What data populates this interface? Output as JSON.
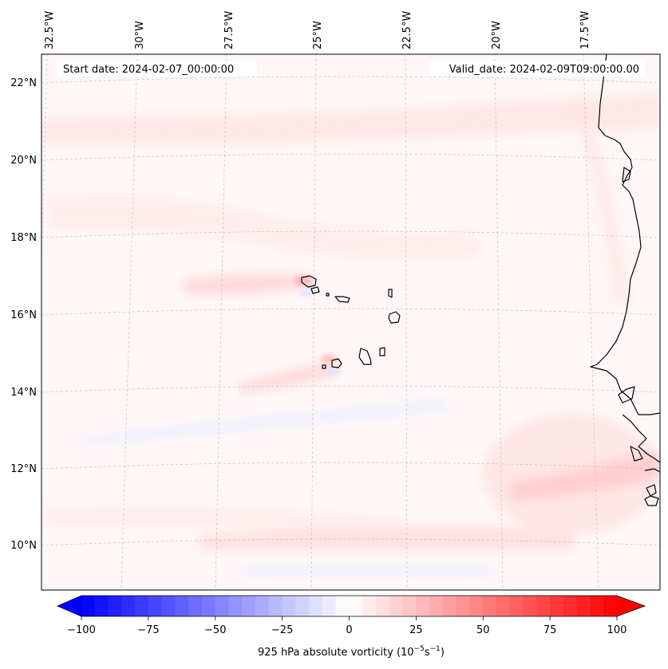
{
  "map": {
    "start_date_label": "Start date: 2024-02-07_00:00:00",
    "valid_date_label": "Valid_date: 2024-02-09T09:00:00.00",
    "longitude_labels": [
      "32.5°W",
      "30°W",
      "27.5°W",
      "25°W",
      "22.5°W",
      "20°W",
      "17.5°W"
    ],
    "latitude_labels": [
      "22°N",
      "20°N",
      "18°N",
      "16°N",
      "14°N",
      "12°N",
      "10°N"
    ]
  },
  "colorbar": {
    "title_prefix": "925 hPa absolute vorticity (10",
    "title_exp1": "−5",
    "title_mid": "s",
    "title_exp2": "−1",
    "title_suffix": ")",
    "vmin": -100,
    "vmax": 100,
    "tick_labels": [
      "−100",
      "−75",
      "−50",
      "−25",
      "0",
      "25",
      "50",
      "75",
      "100"
    ],
    "color_low": "#0000ff",
    "color_mid": "#ffffff",
    "color_high": "#ff0000"
  },
  "colors": {
    "coastline": "#000000",
    "grid": "#bbbbbb",
    "ocean_tint": "#fff7f7"
  }
}
